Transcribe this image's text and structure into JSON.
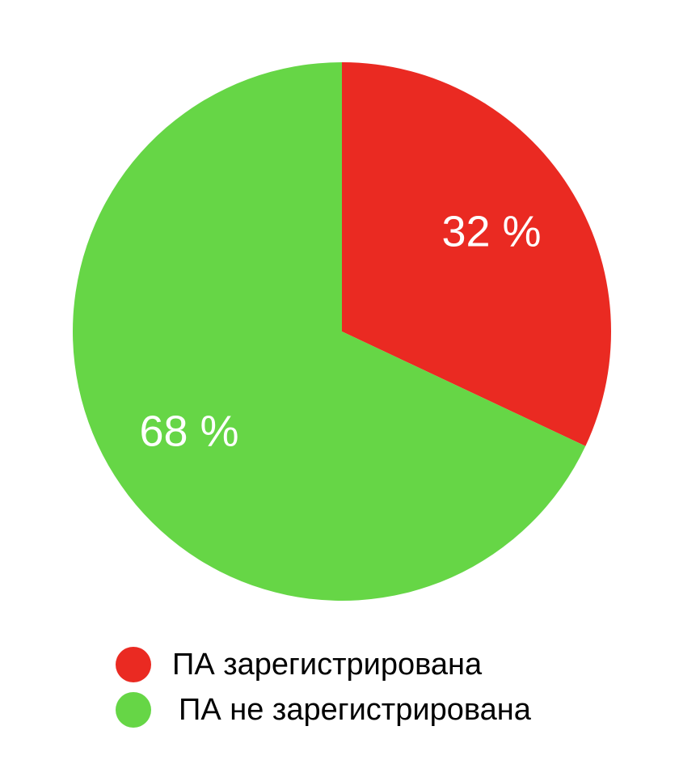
{
  "chart_data": {
    "type": "pie",
    "slices": [
      {
        "label": "ПА зарегистрирована",
        "value": 32,
        "display": "32 %",
        "color": "#ea2a22"
      },
      {
        "label": "ПА не зарегистрирована",
        "value": 68,
        "display": "68 %",
        "color": "#66d646"
      }
    ],
    "start_angle_deg": 0,
    "direction": "clockwise",
    "legend_position": "bottom"
  }
}
